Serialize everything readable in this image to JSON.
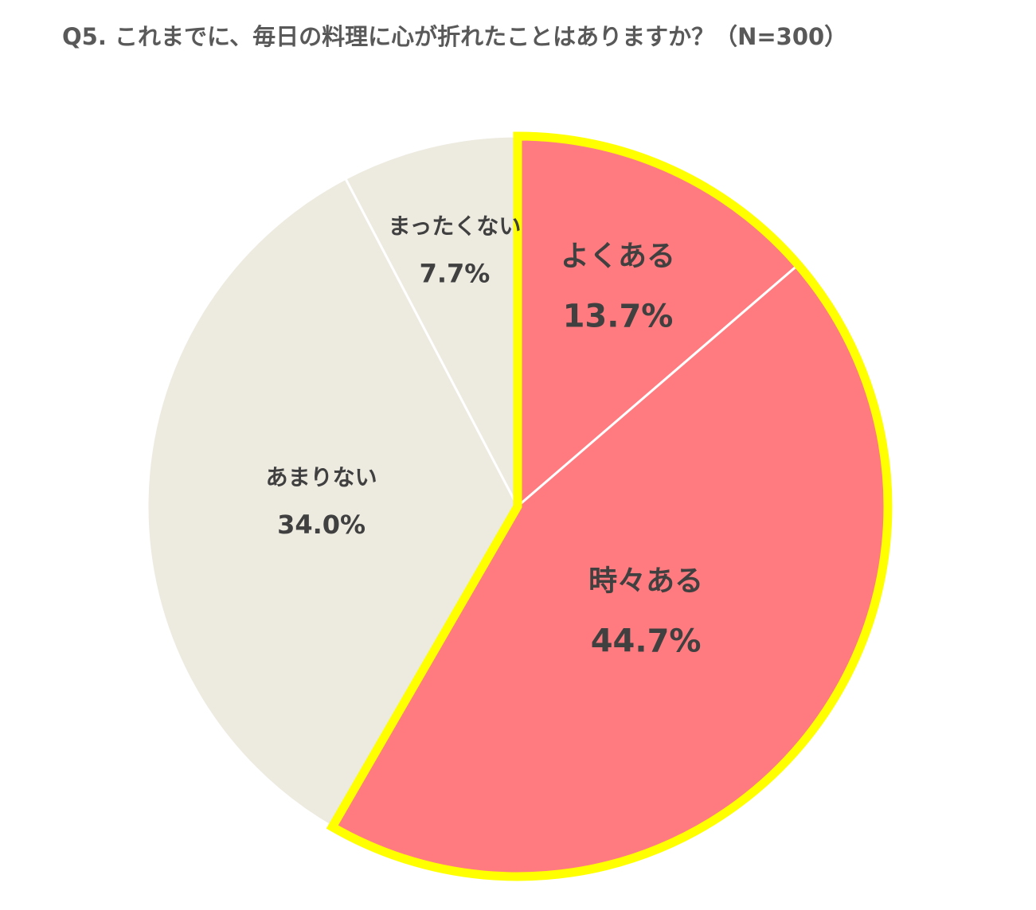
{
  "chart_data": {
    "type": "pie",
    "title": "Q5. これまでに、毎日の料理に心が折れたことはありますか？（N=300）",
    "categories": [
      "よくある",
      "時々ある",
      "あまりない",
      "まったくない"
    ],
    "values": [
      13.7,
      44.7,
      34.0,
      7.7
    ],
    "value_labels": [
      "13.7%",
      "44.7%",
      "34.0%",
      "7.7%"
    ],
    "colors": [
      "#ff7b7f",
      "#ff7b7f",
      "#edeae0",
      "#edeae0"
    ],
    "highlight": [
      0,
      1
    ],
    "highlight_color": "#ffff00",
    "start_angle": 0,
    "direction": "clockwise"
  }
}
